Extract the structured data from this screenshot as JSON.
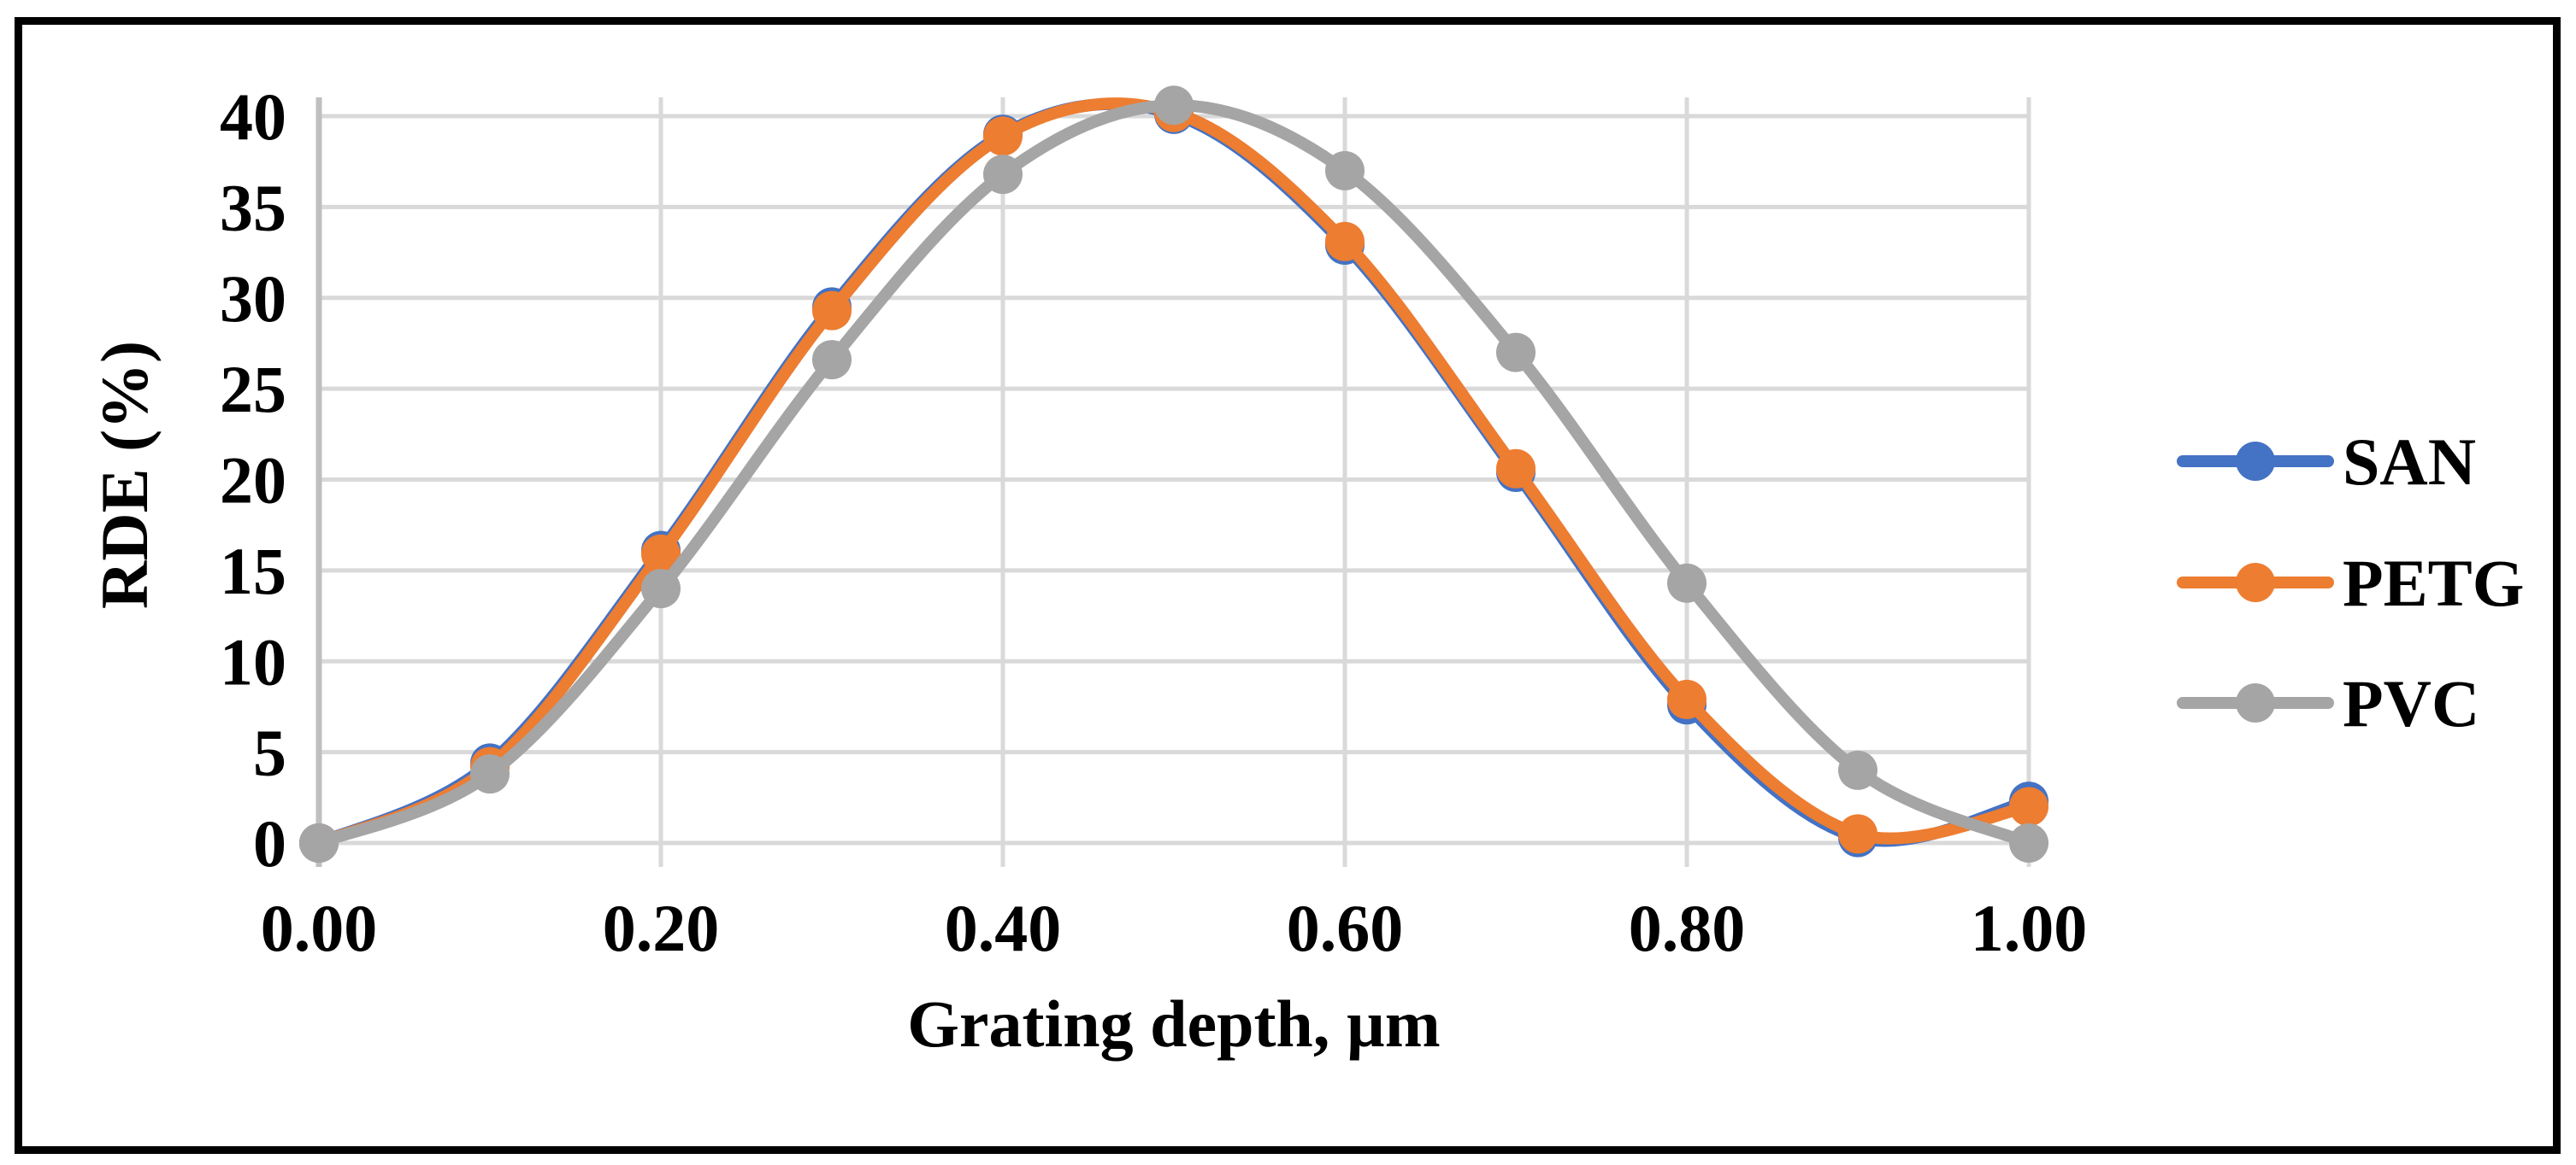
{
  "chart_data": {
    "type": "line",
    "title": "",
    "xlabel": "Grating depth, µm",
    "ylabel": "RDE (%)",
    "x": [
      0.0,
      0.1,
      0.2,
      0.3,
      0.4,
      0.5,
      0.6,
      0.7,
      0.8,
      0.9,
      1.0
    ],
    "series": [
      {
        "name": "SAN",
        "color": "#4472C4",
        "values": [
          0,
          4.4,
          16.1,
          29.5,
          39.0,
          40.1,
          32.9,
          20.4,
          7.6,
          0.3,
          2.3
        ]
      },
      {
        "name": "PETG",
        "color": "#ED7D31",
        "values": [
          0,
          4.2,
          15.9,
          29.3,
          38.9,
          40.2,
          33.1,
          20.6,
          7.9,
          0.5,
          2.0
        ]
      },
      {
        "name": "PVC",
        "color": "#A5A5A5",
        "values": [
          0,
          3.8,
          14.0,
          26.6,
          36.8,
          40.6,
          37.0,
          27.0,
          14.3,
          4.0,
          0.0
        ]
      }
    ],
    "x_tick_labels": [
      "0.00",
      "0.20",
      "0.40",
      "0.60",
      "0.80",
      "1.00"
    ],
    "x_tick_values": [
      0.0,
      0.2,
      0.4,
      0.6,
      0.8,
      1.0
    ],
    "y_tick_labels": [
      "0",
      "5",
      "10",
      "15",
      "20",
      "25",
      "30",
      "35",
      "40"
    ],
    "y_tick_values": [
      0,
      5,
      10,
      15,
      20,
      25,
      30,
      35,
      40
    ],
    "xlim": [
      0.0,
      1.0
    ],
    "ylim": [
      0,
      40
    ],
    "grid": true,
    "smooth_lines": true,
    "legend_position": "right",
    "legend_entries": [
      "SAN",
      "PETG",
      "PVC"
    ],
    "colors": {
      "gridline": "#D9D9D9",
      "axis_line": "#BFBFBF",
      "border": "#000000",
      "background": "#FFFFFF",
      "text": "#000000"
    }
  }
}
